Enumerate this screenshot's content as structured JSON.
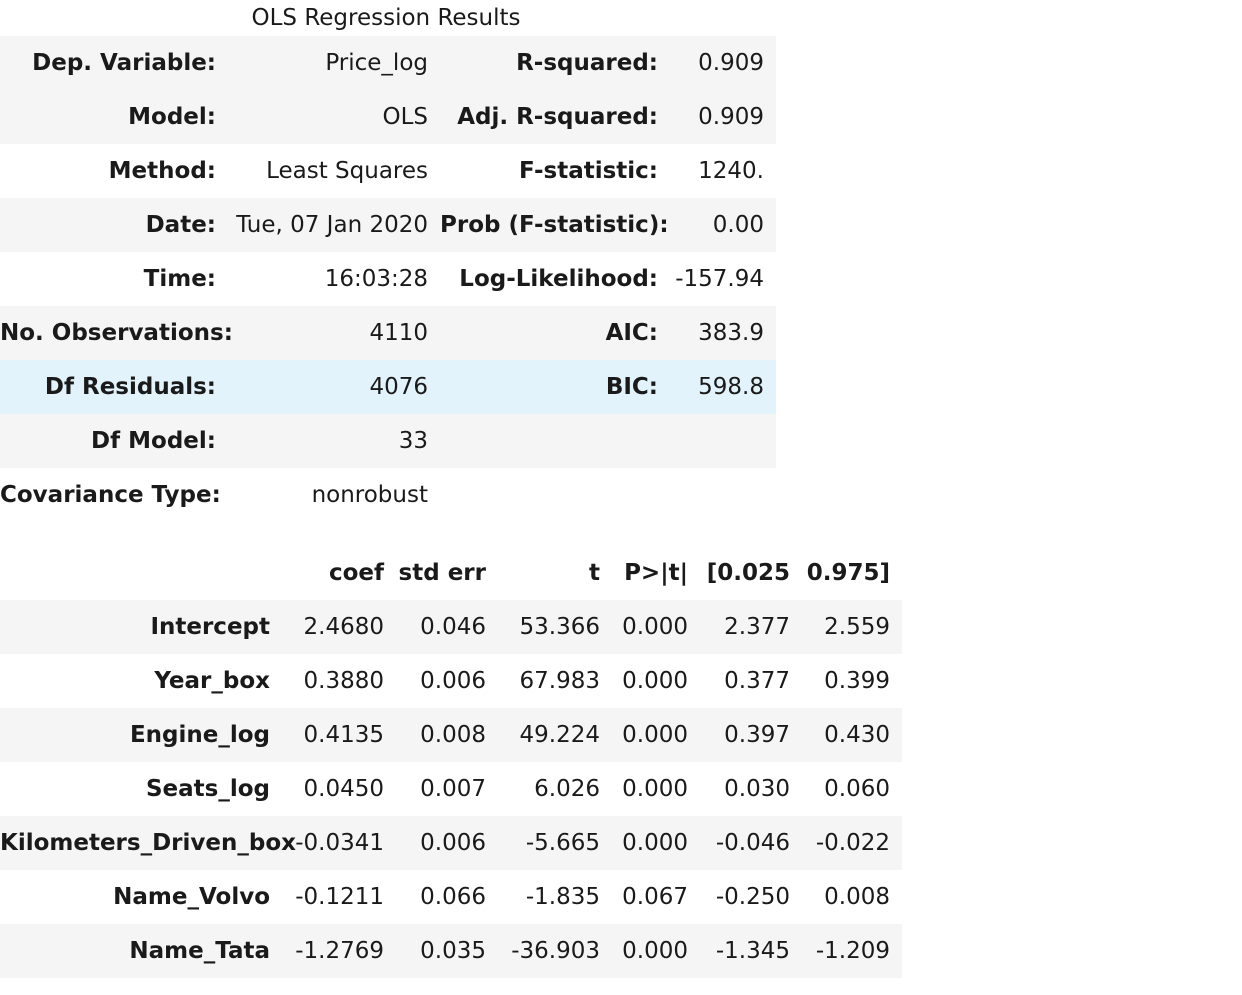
{
  "caption": "OLS Regression Results",
  "summary": {
    "rows": [
      {
        "l1": "Dep. Variable:",
        "v1": "Price_log",
        "l2": "R-squared:",
        "v2": "0.909"
      },
      {
        "l1": "Model:",
        "v1": "OLS",
        "l2": "Adj. R-squared:",
        "v2": "0.909"
      },
      {
        "l1": "Method:",
        "v1": "Least Squares",
        "l2": "F-statistic:",
        "v2": "1240."
      },
      {
        "l1": "Date:",
        "v1": "Tue, 07 Jan 2020",
        "l2": "Prob (F-statistic):",
        "v2": "0.00"
      },
      {
        "l1": "Time:",
        "v1": "16:03:28",
        "l2": "Log-Likelihood:",
        "v2": "-157.94"
      },
      {
        "l1": "No. Observations:",
        "v1": "4110",
        "l2": "AIC:",
        "v2": "383.9"
      },
      {
        "l1": "Df Residuals:",
        "v1": "4076",
        "l2": "BIC:",
        "v2": "598.8"
      },
      {
        "l1": "Df Model:",
        "v1": "33",
        "l2": "",
        "v2": ""
      },
      {
        "l1": "Covariance Type:",
        "v1": "nonrobust",
        "l2": "",
        "v2": ""
      }
    ]
  },
  "coefficients": {
    "headers": [
      "",
      "coef",
      "std err",
      "t",
      "P>|t|",
      "[0.025",
      "0.975]"
    ],
    "rows": [
      {
        "name": "Intercept",
        "coef": "2.4680",
        "std_err": "0.046",
        "t": "53.366",
        "p": "0.000",
        "lo": "2.377",
        "hi": "2.559"
      },
      {
        "name": "Year_box",
        "coef": "0.3880",
        "std_err": "0.006",
        "t": "67.983",
        "p": "0.000",
        "lo": "0.377",
        "hi": "0.399"
      },
      {
        "name": "Engine_log",
        "coef": "0.4135",
        "std_err": "0.008",
        "t": "49.224",
        "p": "0.000",
        "lo": "0.397",
        "hi": "0.430"
      },
      {
        "name": "Seats_log",
        "coef": "0.0450",
        "std_err": "0.007",
        "t": "6.026",
        "p": "0.000",
        "lo": "0.030",
        "hi": "0.060"
      },
      {
        "name": "Kilometers_Driven_box",
        "coef": "-0.0341",
        "std_err": "0.006",
        "t": "-5.665",
        "p": "0.000",
        "lo": "-0.046",
        "hi": "-0.022"
      },
      {
        "name": "Name_Volvo",
        "coef": "-0.1211",
        "std_err": "0.066",
        "t": "-1.835",
        "p": "0.067",
        "lo": "-0.250",
        "hi": "0.008"
      },
      {
        "name": "Name_Tata",
        "coef": "-1.2769",
        "std_err": "0.035",
        "t": "-36.903",
        "p": "0.000",
        "lo": "-1.345",
        "hi": "-1.209"
      }
    ]
  },
  "colors": {
    "stripe": "#f5f5f5",
    "hover_row": "#e2f3fb",
    "text": "#1a1a1a"
  }
}
